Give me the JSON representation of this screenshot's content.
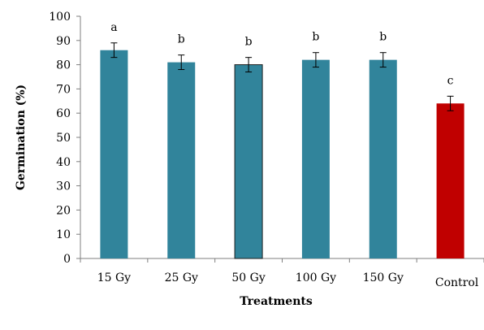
{
  "chart_data": {
    "type": "bar",
    "title": "",
    "xlabel": "Treatments",
    "ylabel": "Germination (%)",
    "ylim": [
      0,
      100
    ],
    "yticks": [
      0,
      10,
      20,
      30,
      40,
      50,
      60,
      70,
      80,
      90,
      100
    ],
    "categories": [
      "15 Gy",
      "25 Gy",
      "50 Gy",
      "100 Gy",
      "150 Gy",
      "Control"
    ],
    "values": [
      86,
      81,
      80,
      82,
      82,
      64
    ],
    "errors": [
      3,
      3,
      3,
      3,
      3,
      3
    ],
    "significance": [
      "a",
      "b",
      "b",
      "b",
      "b",
      "c"
    ],
    "colors": [
      "#31849b",
      "#31849b",
      "#31849b",
      "#31849b",
      "#31849b",
      "#c00000"
    ],
    "grid": false,
    "legend": "none"
  }
}
